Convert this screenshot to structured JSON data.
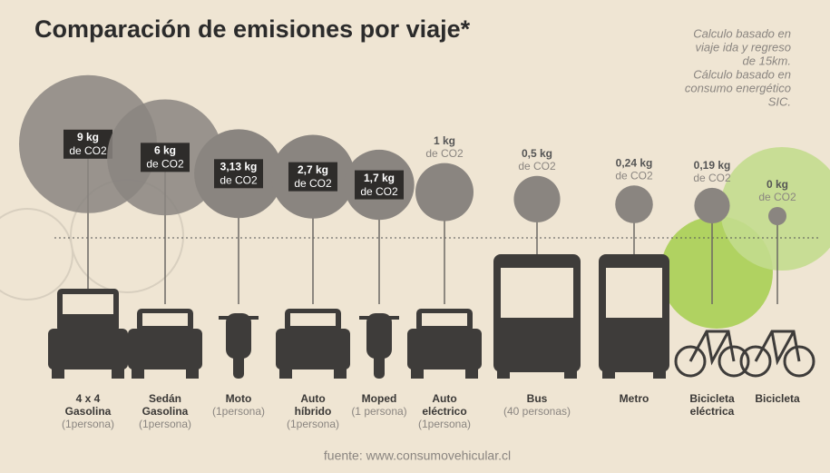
{
  "chart_data": {
    "type": "bubble",
    "title": "Comparación de emisiones por viaje*",
    "notes": [
      "Calculo basado en",
      "viaje ida y regreso",
      "de 15km.",
      "Cálculo basado en",
      "consumo energético",
      "SIC."
    ],
    "categories": [
      [
        "4 x 4",
        "Gasolina"
      ],
      [
        "Sedán",
        "Gasolina"
      ],
      [
        "Moto"
      ],
      [
        "Auto",
        "híbrido"
      ],
      [
        "Moped"
      ],
      [
        "Auto",
        "eléctrico"
      ],
      [
        "Bus"
      ],
      [
        "Metro"
      ],
      [
        "Bicicleta",
        "eléctrica"
      ],
      [
        "Bicicleta"
      ]
    ],
    "occupancy": [
      "(1persona)",
      "(1persona)",
      "(1persona)",
      "(1persona)",
      "(1 persona)",
      "(1persona)",
      "(40 personas)",
      null,
      null,
      null
    ],
    "values": [
      9,
      6,
      3.13,
      2.7,
      1.7,
      1,
      0.5,
      0.24,
      0.19,
      0
    ],
    "value_labels": [
      "9 kg",
      "6 kg",
      "3,13 kg",
      "2,7 kg",
      "1,7 kg",
      "1 kg",
      "0,5 kg",
      "0,24 kg",
      "0,19 kg",
      "0 kg"
    ],
    "unit_label": "de CO2",
    "color": "#8a8580",
    "source": "fuente: www.consumovehicular.cl"
  }
}
